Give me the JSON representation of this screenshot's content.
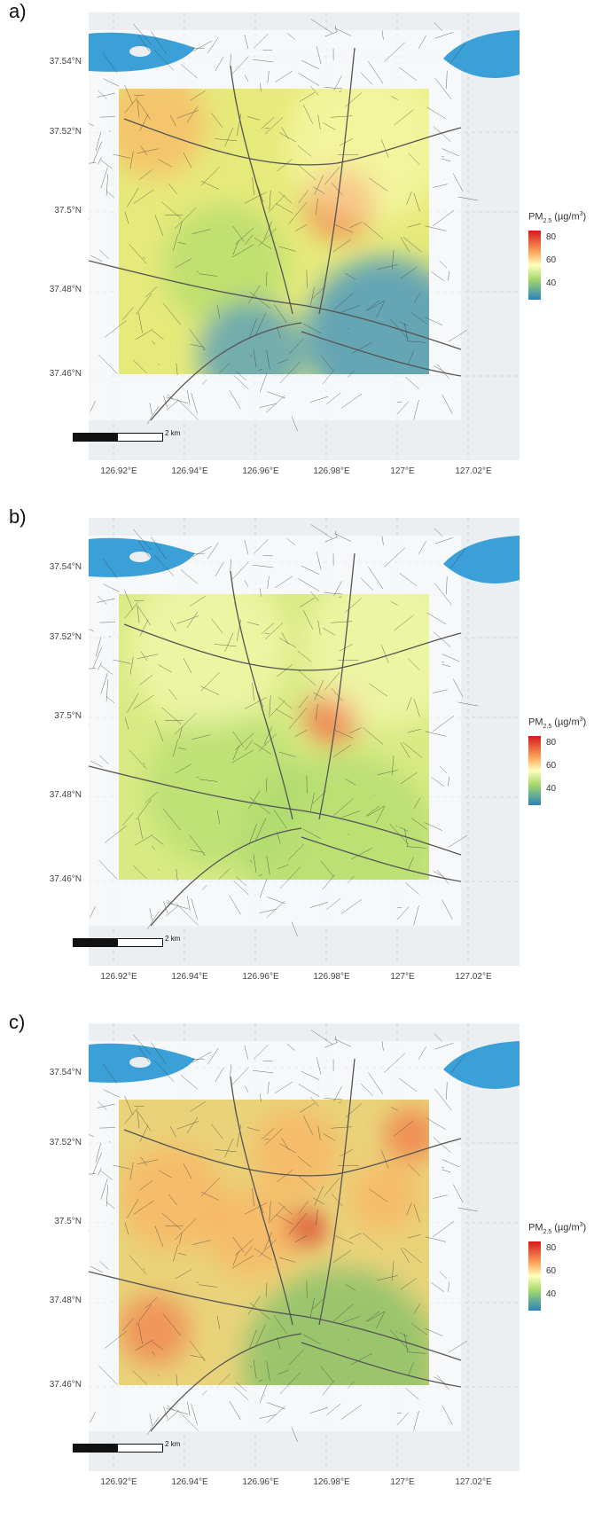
{
  "figure": {
    "panels": [
      {
        "label": "a)"
      },
      {
        "label": "b)"
      },
      {
        "label": "c)"
      }
    ],
    "y_ticks": [
      "37.54°N",
      "37.52°N",
      "37.5°N",
      "37.48°N",
      "37.46°N"
    ],
    "x_ticks": [
      "126.92°E",
      "126.94°E",
      "126.96°E",
      "126.98°E",
      "127°E",
      "127.02°E"
    ],
    "legend": {
      "title_main": "PM",
      "title_sub": "2.5",
      "title_units_pre": " (µg/m",
      "title_units_sup": "3",
      "title_units_post": ")",
      "ticks": [
        "80",
        "60",
        "40"
      ],
      "colors": [
        "#d7191c",
        "#fdae61",
        "#ffffbf",
        "#a6d96a",
        "#2b83ba"
      ]
    },
    "scale_label": "2 km",
    "river_color": "#3ba0d8",
    "background_color": "#eceff1"
  },
  "chart_data": [
    {
      "type": "heatmap",
      "panel": "a)",
      "x_range": [
        126.92,
        127.02
      ],
      "y_range": [
        37.46,
        37.53
      ],
      "color_range": [
        30,
        85
      ]
    },
    {
      "type": "heatmap",
      "panel": "b)",
      "x_range": [
        126.92,
        127.02
      ],
      "y_range": [
        37.46,
        37.53
      ],
      "color_range": [
        30,
        85
      ]
    },
    {
      "type": "heatmap",
      "panel": "c)",
      "x_range": [
        126.92,
        127.02
      ],
      "y_range": [
        37.46,
        37.53
      ],
      "color_range": [
        30,
        85
      ]
    }
  ]
}
